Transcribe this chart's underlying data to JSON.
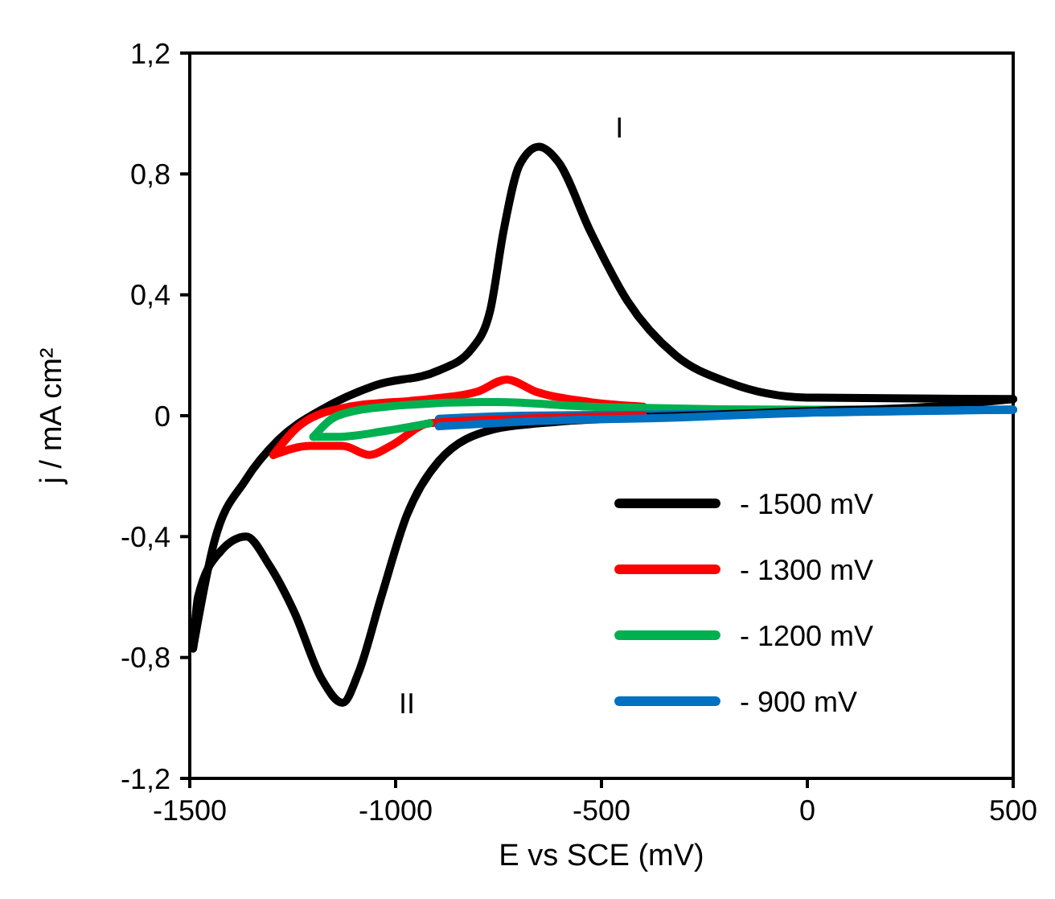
{
  "chart_data": {
    "type": "line",
    "xlabel": "E vs SCE (mV)",
    "ylabel": "j / mA cm²",
    "xlim": [
      -1500,
      500
    ],
    "ylim": [
      -1.2,
      1.2
    ],
    "xticks": [
      -1500,
      -1000,
      -500,
      0,
      500
    ],
    "yticks": [
      {
        "value": -1.2,
        "label": "-1,2"
      },
      {
        "value": -0.8,
        "label": "-0,8"
      },
      {
        "value": -0.4,
        "label": "-0,4"
      },
      0,
      {
        "value": 0.4,
        "label": "0,4"
      },
      {
        "value": 0.8,
        "label": "0,8"
      },
      {
        "value": 1.2,
        "label": "1,2"
      }
    ],
    "grid": false,
    "legend": "bottom right",
    "marker": "none",
    "line_style": "solid",
    "annotations": [
      {
        "text": "I",
        "x": -652,
        "y": 0.89
      },
      {
        "text": "II",
        "x": -1129,
        "y": -0.95
      }
    ],
    "series": [
      {
        "name": "- 1500 mV",
        "color": "#000000",
        "x": [
          -1492,
          -1441,
          -1363,
          -1285,
          -1180,
          -1051,
          -895,
          -816,
          -770,
          -738,
          -699,
          -652,
          -605,
          -527,
          -437,
          -320,
          -191,
          0,
          500
        ],
        "values": [
          -0.77,
          -0.42,
          -0.21,
          -0.08,
          0.02,
          0.1,
          0.15,
          0.22,
          0.35,
          0.61,
          0.83,
          0.89,
          0.84,
          0.61,
          0.38,
          0.2,
          0.11,
          0.06,
          0.055
        ]
      },
      {
        "name": "- 1300 mV",
        "color": "#ff0000",
        "x": [
          -1297,
          -1231,
          -1113,
          -918,
          -801,
          -730,
          -660,
          -527,
          -398
        ],
        "values": [
          -0.13,
          -0.03,
          0.03,
          0.055,
          0.08,
          0.12,
          0.08,
          0.045,
          0.03
        ]
      },
      {
        "name": "- 1200 mV",
        "color": "#00b050",
        "x": [
          -1200,
          -1141,
          -1023,
          -789,
          -750,
          -527,
          0,
          500
        ],
        "values": [
          -0.07,
          0.0,
          0.03,
          0.045,
          0.045,
          0.03,
          0.02,
          0.02
        ]
      },
      {
        "name": "- 900 mV",
        "color": "#0070c0",
        "x": [
          -895,
          -700,
          -300,
          0,
          500
        ],
        "values": [
          -0.01,
          0.0,
          0.005,
          0.01,
          0.02
        ]
      },
      {
        "color": "#000000",
        "x": [
          -1492,
          -1480,
          -1426,
          -1363,
          -1309,
          -1246,
          -1180,
          -1129,
          -1090,
          -1035,
          -973,
          -895,
          -762,
          -650,
          -500,
          -300,
          0,
          300,
          500
        ],
        "values": [
          -0.77,
          -0.6,
          -0.45,
          -0.4,
          -0.49,
          -0.65,
          -0.87,
          -0.95,
          -0.85,
          -0.6,
          -0.33,
          -0.15,
          -0.045,
          -0.025,
          -0.01,
          0.0,
          0.015,
          0.03,
          0.055
        ]
      },
      {
        "color": "#ff0000",
        "x": [
          -1297,
          -1207,
          -1129,
          -1063,
          -1012,
          -918,
          -700,
          -398
        ],
        "values": [
          -0.13,
          -0.1,
          -0.1,
          -0.13,
          -0.1,
          -0.025,
          -0.01,
          0.0
        ]
      },
      {
        "color": "#00b050",
        "x": [
          -1200,
          -1141,
          -1023,
          -918
        ],
        "values": [
          -0.07,
          -0.07,
          -0.05,
          -0.025
        ]
      },
      {
        "color": "#0070c0",
        "x": [
          -895,
          -700,
          -300,
          0,
          500
        ],
        "values": [
          -0.035,
          -0.02,
          -0.005,
          0.01,
          0.02
        ]
      }
    ]
  }
}
